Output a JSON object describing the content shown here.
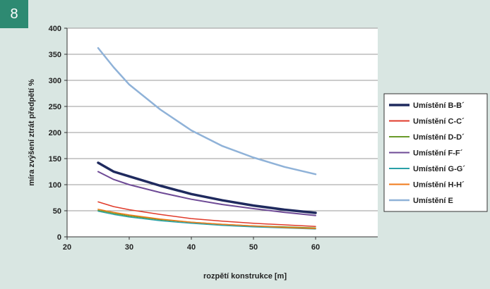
{
  "figure": {
    "number": "8"
  },
  "colors": {
    "background": "#d9e6e2",
    "badge": "#2e8a72",
    "plot_area": "#ffffff",
    "grid": "#9a9a9a"
  },
  "chart_data": {
    "type": "line",
    "title": "",
    "xlabel": "rozpětí konstrukce [m]",
    "ylabel": "míra zvýšení ztrát předpětí %",
    "xlim": [
      20,
      70
    ],
    "ylim": [
      0,
      400
    ],
    "xticks": [
      20,
      30,
      40,
      50,
      60
    ],
    "yticks": [
      0,
      50,
      100,
      150,
      200,
      250,
      300,
      350,
      400
    ],
    "grid": {
      "horizontal": true,
      "vertical": false
    },
    "legend_position": "right",
    "x": [
      25,
      27.5,
      30,
      35,
      40,
      45,
      50,
      55,
      60
    ],
    "series": [
      {
        "name": "Umístění B-B´",
        "color": "#1f2a5e",
        "width": 3.5,
        "values": [
          142,
          125,
          116,
          98,
          82,
          70,
          60,
          52,
          46
        ]
      },
      {
        "name": "Umístění C-C´",
        "color": "#e03a2a",
        "width": 1.5,
        "values": [
          67,
          58,
          52,
          43,
          35,
          30,
          26,
          23,
          20
        ]
      },
      {
        "name": "Umístění D-D´",
        "color": "#6a9a2a",
        "width": 1.5,
        "values": [
          51,
          45,
          40,
          33,
          28,
          24,
          21,
          19,
          17
        ]
      },
      {
        "name": "Umístění F-F´",
        "color": "#6e4a96",
        "width": 2,
        "values": [
          125,
          110,
          100,
          85,
          72,
          62,
          54,
          47,
          41
        ]
      },
      {
        "name": "Umístění G-G´",
        "color": "#2aa0a8",
        "width": 1.5,
        "values": [
          49,
          43,
          38,
          31,
          26,
          22,
          19,
          17,
          15
        ]
      },
      {
        "name": "Umístění H-H´",
        "color": "#f07a1a",
        "width": 1.5,
        "values": [
          53,
          47,
          42,
          34,
          28,
          24,
          21,
          18,
          16
        ]
      },
      {
        "name": "Umístění E",
        "color": "#8fb2d8",
        "width": 2.5,
        "values": [
          362,
          325,
          292,
          244,
          204,
          174,
          152,
          134,
          120
        ]
      }
    ]
  }
}
